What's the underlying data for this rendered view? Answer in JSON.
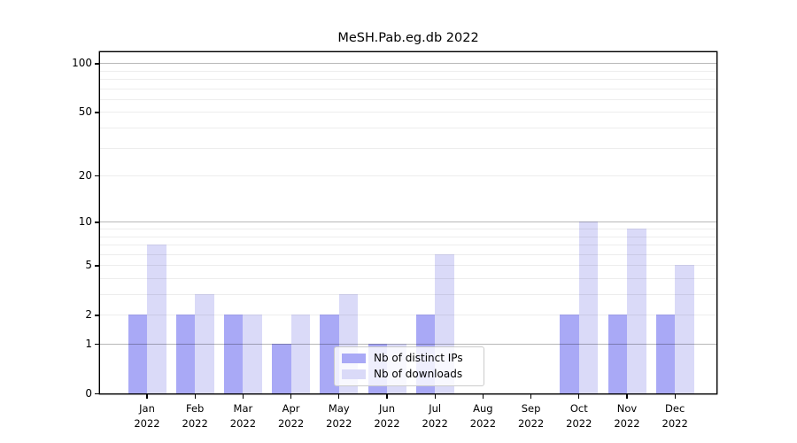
{
  "chart_data": {
    "type": "bar",
    "title": "MeSH.Pab.eg.db 2022",
    "categories": [
      "Jan",
      "Feb",
      "Mar",
      "Apr",
      "May",
      "Jun",
      "Jul",
      "Aug",
      "Sep",
      "Oct",
      "Nov",
      "Dec"
    ],
    "category_year": "2022",
    "series": [
      {
        "name": "Nb of distinct IPs",
        "color": "#a9a9f6",
        "values": [
          2,
          2,
          2,
          1,
          2,
          1,
          2,
          0,
          0,
          2,
          2,
          2
        ]
      },
      {
        "name": "Nb of downloads",
        "color": "#dadaf8",
        "values": [
          7,
          3,
          2,
          2,
          3,
          1,
          6,
          0,
          0,
          10,
          9,
          5
        ]
      }
    ],
    "xlabel": "",
    "ylabel": "",
    "yscale": "log10(1+x)",
    "ylim": [
      0,
      117
    ],
    "yticks": [
      100,
      50,
      20,
      10,
      5,
      2,
      1,
      0
    ],
    "major_gridlines": [
      1,
      10,
      100
    ],
    "minor_gridlines": [
      2,
      3,
      4,
      5,
      6,
      7,
      8,
      9,
      20,
      30,
      40,
      50,
      60,
      70,
      80,
      90
    ],
    "grid": true,
    "legend_position": "lower center"
  }
}
